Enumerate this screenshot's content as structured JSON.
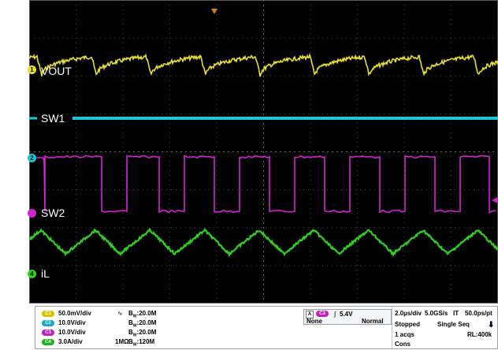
{
  "traces": [
    {
      "id": "vout",
      "label": "VOUT",
      "marker": "1",
      "color": "#e8e02a"
    },
    {
      "id": "sw1",
      "label": "SW1",
      "marker": "",
      "color": "#17c7dc"
    },
    {
      "id": "sw2",
      "label": "SW2",
      "marker": "2",
      "color": "#d620d6"
    },
    {
      "id": "il",
      "label": "iL",
      "marker": "4",
      "color": "#2fd11f"
    }
  ],
  "channels": [
    {
      "name": "C1",
      "scale": "50.0mV/div",
      "coupling_icon": "ac-coupling-icon",
      "coupling": "",
      "bw": "20.0M",
      "bw_prefix": "B",
      "color": "#d7c100"
    },
    {
      "name": "C2",
      "scale": "10.0V/div",
      "coupling": "",
      "bw": "20.0M",
      "bw_prefix": "B",
      "color": "#17a9c9"
    },
    {
      "name": "C3",
      "scale": "10.0V/div",
      "coupling": "",
      "bw": "20.0M",
      "bw_prefix": "B",
      "color": "#c020c0"
    },
    {
      "name": "C4",
      "scale": "3.0A/div",
      "coupling": "1MΩ",
      "bw": "120M",
      "bw_prefix": "B",
      "color": "#20b020"
    }
  ],
  "trigger": {
    "source": "C3",
    "level": "5.4V",
    "mode": "None",
    "type": "Normal",
    "badge": "A"
  },
  "timebase": {
    "scale": "2.0µs/div",
    "rate": "5.0GS/s",
    "mode": "IT",
    "resolution": "50.0ps/pt"
  },
  "acquisition": {
    "state": "Stopped",
    "seq": "Single Seq",
    "count": "1 acqs",
    "record": "RL:400k",
    "cons": "Cons"
  }
}
